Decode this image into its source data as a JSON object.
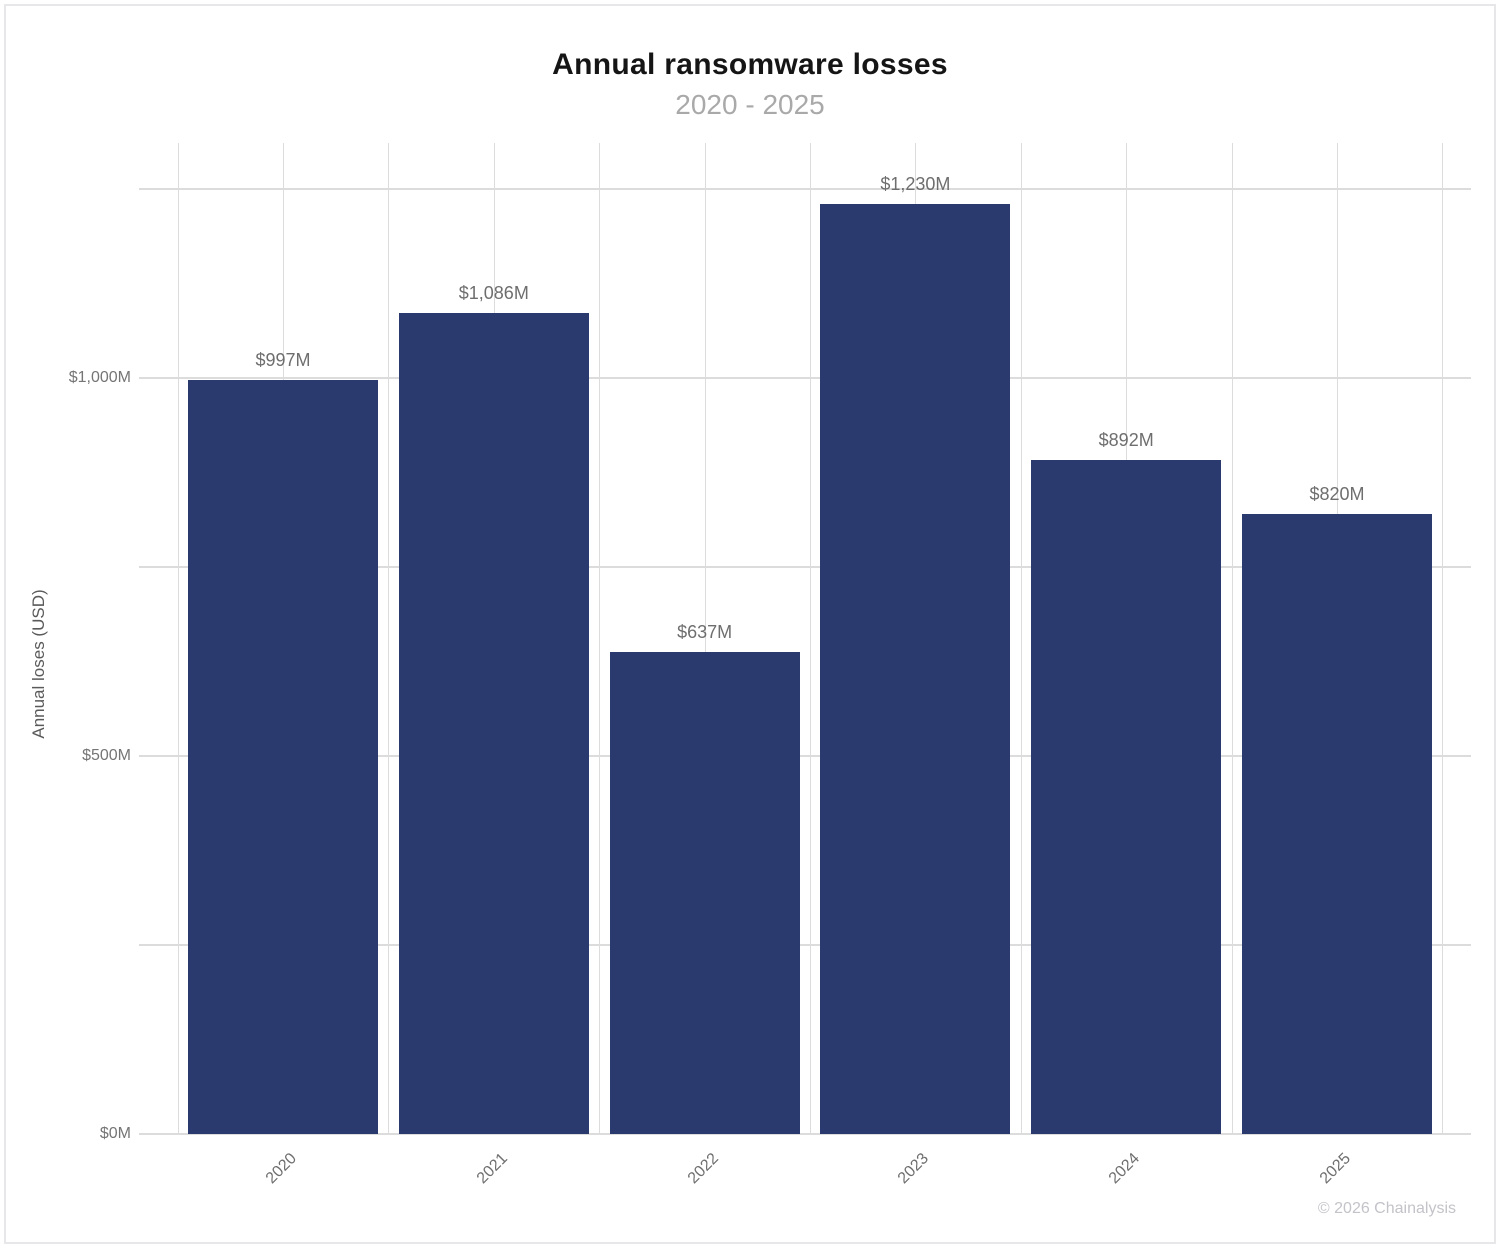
{
  "page": {
    "background": "#ffffff",
    "border_color": "#e7e7e9"
  },
  "chart_data": {
    "type": "bar",
    "title": "Annual ransomware losses",
    "subtitle": "2020 - 2025",
    "ylabel": "Annual loses (USD)",
    "xlabel": "",
    "footer": "© 2026 Chainalysis",
    "unit": "USD millions",
    "categories": [
      "2020",
      "2021",
      "2022",
      "2023",
      "2024",
      "2025"
    ],
    "values": [
      997,
      1086,
      637,
      1230,
      892,
      820
    ],
    "bar_labels": [
      "$997M",
      "$1,086M",
      "$637M",
      "$1,230M",
      "$892M",
      "$820M"
    ],
    "ylim": [
      0,
      1250
    ],
    "grid": true,
    "grid_interval": 250,
    "legend_position": "none",
    "yticks": [
      {
        "value": 0,
        "label": "$0M"
      },
      {
        "value": 500,
        "label": "$500M"
      },
      {
        "value": 1000,
        "label": "$1,000M"
      }
    ],
    "colors": {
      "bar": "#2b3a6e",
      "grid": "#dcdcdc",
      "title": "#151515",
      "subtitle": "#a9a9a9",
      "tick_label": "#757575",
      "bar_label": "#6e6e6e",
      "axis_title": "#5a5a5a",
      "footer": "#c3c3c9"
    }
  }
}
